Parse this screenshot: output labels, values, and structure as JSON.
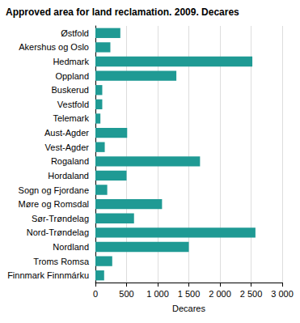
{
  "chart_data": {
    "type": "bar",
    "orientation": "horizontal",
    "title": "Approved area for land reclamation. 2009. Decares",
    "x_label": "Decares",
    "categories": [
      "Østfold",
      "Akershus og Oslo",
      "Hedmark",
      "Oppland",
      "Buskerud",
      "Vestfold",
      "Telemark",
      "Aust-Agder",
      "Vest-Agder",
      "Rogaland",
      "Hordaland",
      "Sogn og Fjordane",
      "Møre og Romsdal",
      "Sør-Trøndelag",
      "Nord-Trøndelag",
      "Nordland",
      "Troms Romsa",
      "Finnmark Finnmárku"
    ],
    "values": [
      400,
      240,
      2520,
      1300,
      110,
      110,
      80,
      510,
      150,
      1680,
      500,
      190,
      1070,
      620,
      2570,
      1500,
      270,
      140
    ],
    "color": "#1f9a94",
    "xlim": [
      0,
      3000
    ],
    "xticks": [
      0,
      500,
      {
        "value": 1000,
        "label": "1 000"
      },
      {
        "value": 1500,
        "label": "1 500"
      },
      {
        "value": 2000,
        "label": "2 000"
      },
      {
        "value": 2500,
        "label": "2 500"
      },
      {
        "value": 3000,
        "label": "3 000"
      }
    ],
    "grid": true
  }
}
